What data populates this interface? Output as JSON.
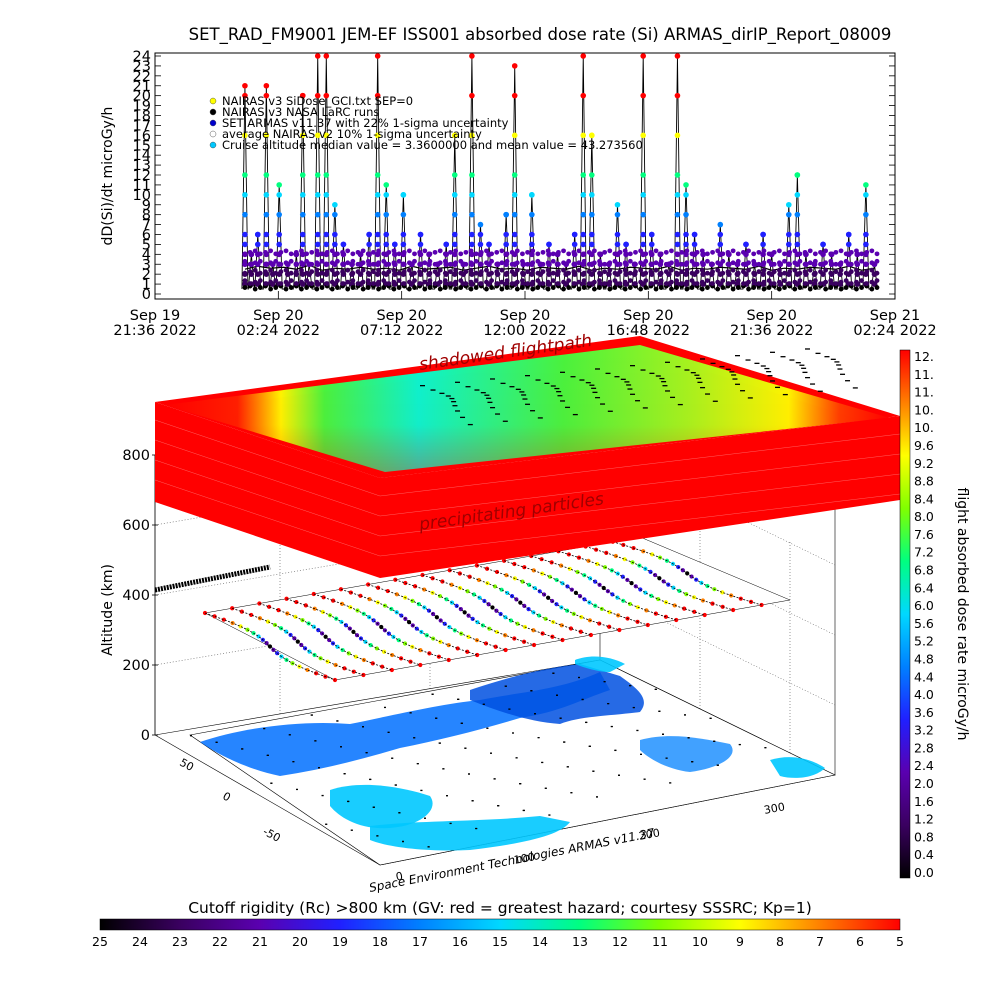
{
  "chart_data": [
    {
      "type": "line",
      "title": "SET_RAD_FM9001  JEM-EF ISS001 absorbed dose rate (Si) ARMAS_dirIP_Report_08009",
      "ylabel": "dD(Si)/dt microGy/h",
      "ylim": [
        0,
        24
      ],
      "yticks": [
        0,
        1,
        2,
        3,
        4,
        5,
        6,
        7,
        8,
        9,
        10,
        11,
        12,
        13,
        14,
        15,
        16,
        17,
        18,
        19,
        20,
        21,
        22,
        23,
        24
      ],
      "xlim": [
        0,
        1728
      ],
      "x_unit": "minutes after Sep 19 2022 21:36",
      "xticks": [
        {
          "x": 0,
          "line1": "Sep 19",
          "line2": "21:36  2022"
        },
        {
          "x": 288,
          "line1": "Sep 20",
          "line2": "02:24  2022"
        },
        {
          "x": 576,
          "line1": "Sep 20",
          "line2": "07:12  2022"
        },
        {
          "x": 864,
          "line1": "Sep 20",
          "line2": "12:00  2022"
        },
        {
          "x": 1152,
          "line1": "Sep 20",
          "line2": "16:48  2022"
        },
        {
          "x": 1440,
          "line1": "Sep 20",
          "line2": "21:36  2022"
        },
        {
          "x": 1728,
          "line1": "Sep 21",
          "line2": "02:24  2022"
        }
      ],
      "legend": [
        {
          "text": "NAIRAS v3 SiDose_GCI.txt  SEP=0",
          "color": "#ffff00"
        },
        {
          "text": "NAIRAS v3 NASA LaRC runs",
          "color": "#000000"
        },
        {
          "text": "SET ARMAS v11.37 with 22% 1-sigma uncertainty",
          "color": "#0000cc"
        },
        {
          "text": "average NAIRAS v2 10% 1-sigma uncertainty",
          "color": "#ffffff"
        },
        {
          "text": "Cruise altitude median value = 3.3600000 and mean value = 43.273560",
          "color": "#00c8ff"
        }
      ],
      "series": [
        {
          "x": [
            210,
            225,
            240,
            260,
            275,
            290,
            310,
            330,
            345,
            360,
            380,
            400,
            420,
            440,
            460,
            480,
            500,
            520,
            540,
            560,
            580,
            600,
            620,
            640,
            660,
            680,
            700,
            720,
            740,
            760,
            780,
            800,
            820,
            840,
            860,
            880,
            900,
            920,
            940,
            960,
            980,
            1000,
            1020,
            1040,
            1060,
            1080,
            1100,
            1120,
            1140,
            1160,
            1180,
            1200,
            1220,
            1240,
            1260,
            1280,
            1300,
            1320,
            1340,
            1360,
            1380,
            1400,
            1420,
            1440,
            1460,
            1480,
            1500,
            1520,
            1540,
            1560,
            1580,
            1600,
            1620,
            1640,
            1660,
            1680
          ],
          "y": [
            21,
            4,
            6,
            21,
            3,
            11,
            3,
            4,
            20,
            3,
            24,
            24,
            9,
            5,
            3,
            4,
            6,
            24,
            11,
            5,
            10,
            3,
            6,
            4,
            3,
            5,
            16,
            3,
            24,
            7,
            5,
            3,
            8,
            23,
            3,
            10,
            3,
            5,
            4,
            3,
            6,
            24,
            16,
            4,
            3,
            9,
            5,
            3,
            24,
            6,
            4,
            3,
            24,
            11,
            6,
            4,
            3,
            7,
            4,
            3,
            5,
            3,
            6,
            4,
            3,
            9,
            12,
            4,
            3,
            5,
            4,
            3,
            6,
            4,
            11,
            3
          ]
        },
        {
          "x": [
            210,
            240,
            270,
            300,
            330,
            360,
            390,
            420,
            450,
            480,
            510,
            540,
            570,
            600,
            630,
            660,
            690,
            720,
            750,
            780,
            810,
            840,
            870,
            900,
            930,
            960,
            990,
            1020,
            1050,
            1080,
            1110,
            1140,
            1170,
            1200,
            1230,
            1260,
            1290,
            1320,
            1350,
            1380,
            1410,
            1440,
            1470,
            1500,
            1530,
            1560,
            1590,
            1620,
            1650,
            1680
          ],
          "y": [
            2.5,
            2.8,
            2.6,
            2.7,
            2.5,
            2.9,
            2.4,
            2.6,
            2.5,
            2.7,
            2.5,
            2.6,
            2.4,
            2.8,
            2.5,
            2.6,
            2.7,
            2.4,
            2.6,
            2.8,
            2.5,
            2.6,
            2.4,
            2.7,
            2.6,
            2.5,
            2.8,
            2.4,
            2.6,
            2.5,
            2.7,
            2.6,
            2.5,
            2.8,
            2.4,
            2.6,
            2.5,
            2.7,
            2.6,
            2.5,
            2.8,
            2.4,
            2.6,
            2.5,
            2.7,
            2.6,
            2.5,
            2.8,
            2.4,
            2.6
          ]
        }
      ]
    },
    {
      "type": "heatmap",
      "ylabel": "Altitude (km)",
      "zlim": [
        0,
        800
      ],
      "zticks": [
        0,
        200,
        400,
        600,
        800
      ],
      "lon_ticks": [
        0,
        100,
        200,
        300
      ],
      "lat_ticks": [
        -50,
        0,
        50
      ],
      "annotations": [
        "shadowed flightpath",
        "precipitating particles",
        "Space Environment Technologies ARMAS v11.37"
      ]
    },
    {
      "type": "colorbar",
      "orientation": "vertical",
      "label": "flight absorbed dose rate microGy/h",
      "ticks": [
        "12.",
        "11.",
        "11.",
        "10.",
        "10.",
        "9.6",
        "9.2",
        "8.8",
        "8.4",
        "8.0",
        "7.6",
        "7.2",
        "6.8",
        "6.4",
        "6.0",
        "5.6",
        "5.2",
        "4.8",
        "4.4",
        "4.0",
        "3.6",
        "3.2",
        "2.8",
        "2.4",
        "2.0",
        "1.6",
        "1.2",
        "0.8",
        "0.4",
        "0.0"
      ],
      "colors": [
        "#000000",
        "#3a0060",
        "#5a00b0",
        "#2020ff",
        "#0080ff",
        "#00d8ff",
        "#00ff80",
        "#80ff00",
        "#ffff00",
        "#ff8000",
        "#ff0000"
      ]
    },
    {
      "type": "colorbar",
      "orientation": "horizontal",
      "label": "Cutoff rigidity (Rc) >800 km (GV: red = greatest hazard; courtesy SSSRC; Kp=1)",
      "ticks": [
        "25",
        "24",
        "23",
        "22",
        "21",
        "20",
        "19",
        "18",
        "17",
        "16",
        "15",
        "14",
        "13",
        "12",
        "11",
        "10",
        "9",
        "8",
        "7",
        "6",
        "5"
      ],
      "colors": [
        "#000000",
        "#3a0060",
        "#5a00b0",
        "#2020ff",
        "#0080ff",
        "#00d8ff",
        "#00ff80",
        "#80ff00",
        "#ffff00",
        "#ff8000",
        "#ff0000"
      ]
    }
  ]
}
